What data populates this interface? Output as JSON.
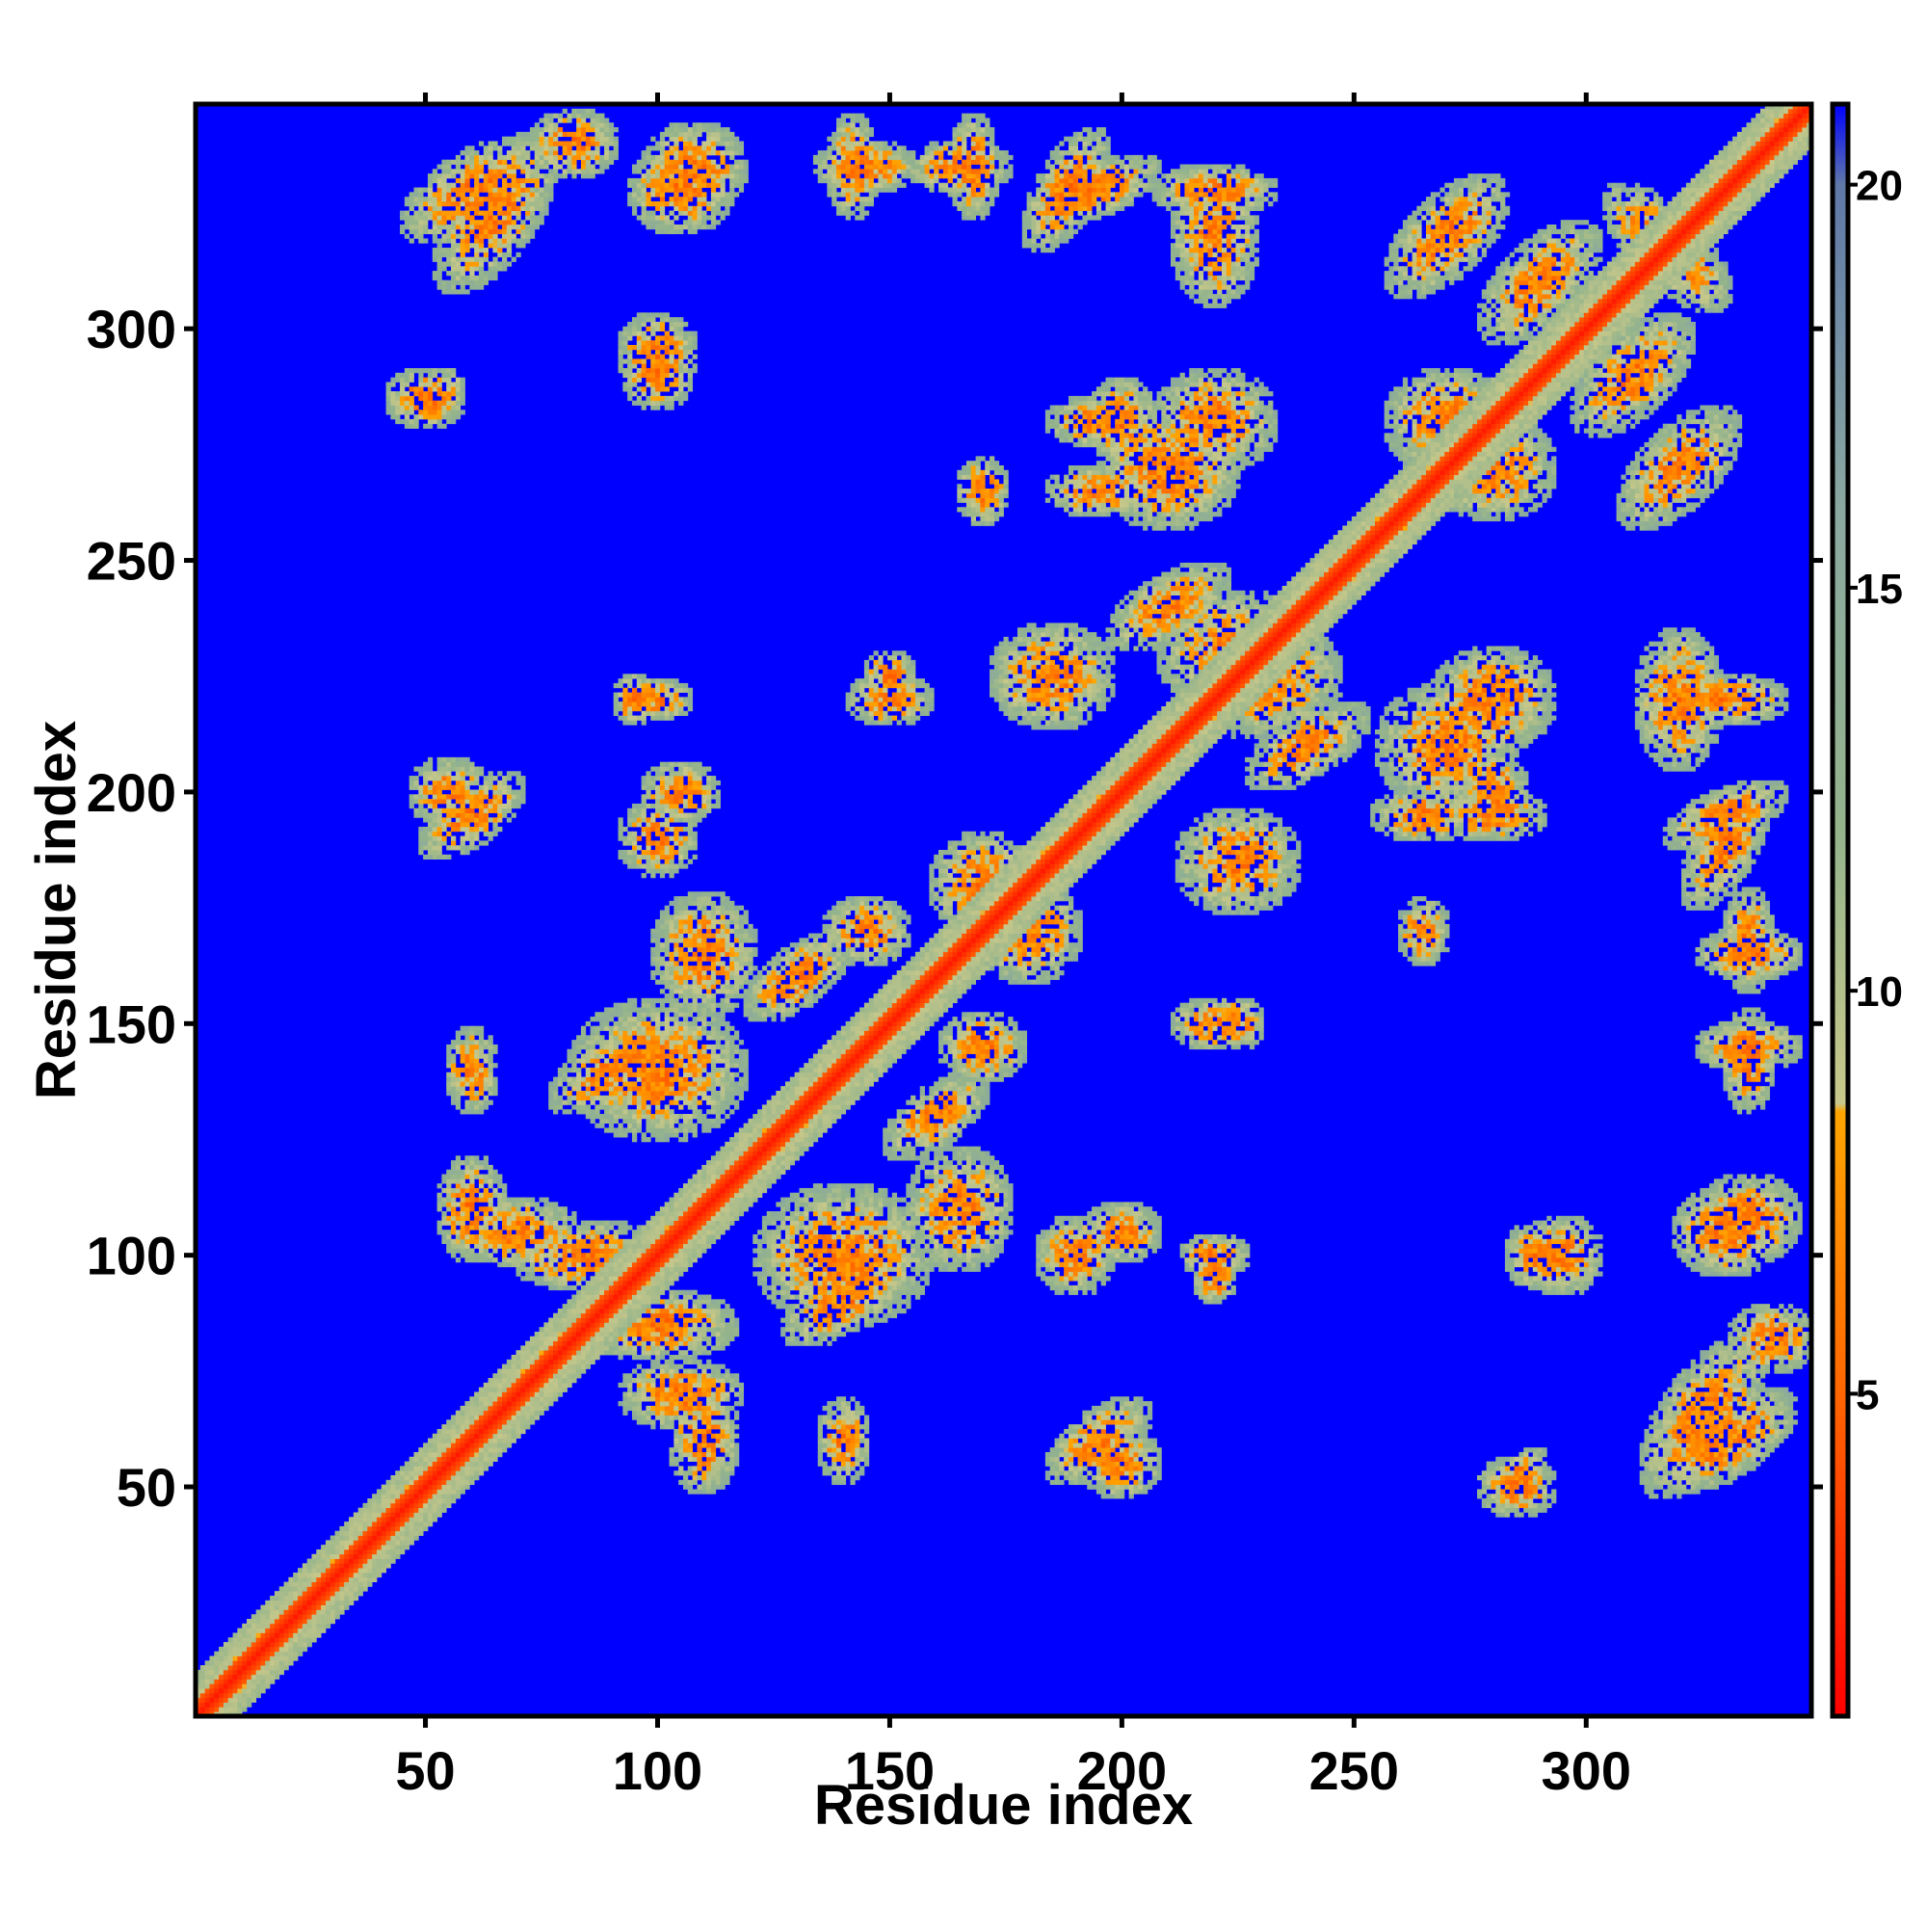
{
  "chart_data": {
    "type": "heatmap",
    "title": "",
    "xlabel": "Residue index",
    "ylabel": "Residue index",
    "x_range": [
      1,
      348
    ],
    "y_range": [
      1,
      348
    ],
    "x_ticks": [
      50,
      100,
      150,
      200,
      250,
      300
    ],
    "y_ticks": [
      50,
      100,
      150,
      200,
      250,
      300
    ],
    "colorbar": {
      "range": [
        1,
        21
      ],
      "ticks": [
        5,
        10,
        15,
        20
      ],
      "stops": [
        {
          "value": 1,
          "color": "#ff0000"
        },
        {
          "value": 5,
          "color": "#ff6600"
        },
        {
          "value": 8.5,
          "color": "#ffa500"
        },
        {
          "value": 8.6,
          "color": "#c8c88a"
        },
        {
          "value": 12,
          "color": "#94b48c"
        },
        {
          "value": 16,
          "color": "#8aa8a0"
        },
        {
          "value": 20,
          "color": "#5f78a8"
        },
        {
          "value": 21,
          "color": "#0000ff"
        }
      ]
    },
    "background_value": 21,
    "diagonal_band": {
      "core_value": 2,
      "half_width": 3,
      "outer_half_width": 9,
      "outer_value": 11
    },
    "contact_regions": [
      {
        "x": 65,
        "y": 325,
        "sx": 14,
        "sy": 18,
        "tilt": 1
      },
      {
        "x": 82,
        "y": 340,
        "sx": 10,
        "sy": 8,
        "tilt": 0
      },
      {
        "x": 108,
        "y": 335,
        "sx": 12,
        "sy": 10,
        "tilt": 0
      },
      {
        "x": 142,
        "y": 335,
        "sx": 6,
        "sy": 12,
        "tilt": 0
      },
      {
        "x": 168,
        "y": 335,
        "sx": 6,
        "sy": 12,
        "tilt": 0
      },
      {
        "x": 188,
        "y": 330,
        "sx": 10,
        "sy": 14,
        "tilt": 1
      },
      {
        "x": 220,
        "y": 320,
        "sx": 10,
        "sy": 16,
        "tilt": 0
      },
      {
        "x": 100,
        "y": 295,
        "sx": 9,
        "sy": 9,
        "tilt": 0
      },
      {
        "x": 52,
        "y": 285,
        "sx": 7,
        "sy": 7,
        "tilt": 1
      },
      {
        "x": 55,
        "y": 200,
        "sx": 9,
        "sy": 8,
        "tilt": 0
      },
      {
        "x": 105,
        "y": 200,
        "sx": 9,
        "sy": 7,
        "tilt": 0
      },
      {
        "x": 100,
        "y": 220,
        "sx": 8,
        "sy": 5,
        "tilt": 0
      },
      {
        "x": 150,
        "y": 220,
        "sx": 10,
        "sy": 6,
        "tilt": 0
      },
      {
        "x": 195,
        "y": 280,
        "sx": 12,
        "sy": 6,
        "tilt": 0
      },
      {
        "x": 195,
        "y": 265,
        "sx": 12,
        "sy": 6,
        "tilt": 0
      },
      {
        "x": 220,
        "y": 280,
        "sx": 14,
        "sy": 12,
        "tilt": 0
      },
      {
        "x": 270,
        "y": 320,
        "sx": 14,
        "sy": 14,
        "tilt": 1
      },
      {
        "x": 280,
        "y": 270,
        "sx": 14,
        "sy": 12,
        "tilt": 0
      },
      {
        "x": 310,
        "y": 290,
        "sx": 14,
        "sy": 14,
        "tilt": 1
      },
      {
        "x": 315,
        "y": 320,
        "sx": 12,
        "sy": 12,
        "tilt": -1
      },
      {
        "x": 230,
        "y": 225,
        "sx": 18,
        "sy": 14,
        "tilt": 0
      },
      {
        "x": 270,
        "y": 210,
        "sx": 16,
        "sy": 14,
        "tilt": 0
      },
      {
        "x": 210,
        "y": 240,
        "sx": 14,
        "sy": 10,
        "tilt": 1
      },
      {
        "x": 225,
        "y": 185,
        "sx": 14,
        "sy": 12,
        "tilt": 0
      },
      {
        "x": 280,
        "y": 200,
        "sx": 8,
        "sy": 10,
        "tilt": 0
      },
      {
        "x": 330,
        "y": 220,
        "sx": 14,
        "sy": 6,
        "tilt": 0
      },
      {
        "x": 330,
        "y": 195,
        "sx": 14,
        "sy": 8,
        "tilt": 1
      },
      {
        "x": 335,
        "y": 165,
        "sx": 12,
        "sy": 6,
        "tilt": 0
      },
      {
        "x": 335,
        "y": 145,
        "sx": 12,
        "sy": 6,
        "tilt": 0
      },
      {
        "x": 330,
        "y": 105,
        "sx": 12,
        "sy": 10,
        "tilt": 0
      },
      {
        "x": 330,
        "y": 60,
        "sx": 16,
        "sy": 12,
        "tilt": 1
      },
      {
        "x": 290,
        "y": 100,
        "sx": 8,
        "sy": 8,
        "tilt": 0
      },
      {
        "x": 285,
        "y": 50,
        "sx": 9,
        "sy": 7,
        "tilt": 0
      },
      {
        "x": 195,
        "y": 60,
        "sx": 12,
        "sy": 10,
        "tilt": 1
      },
      {
        "x": 190,
        "y": 100,
        "sx": 9,
        "sy": 9,
        "tilt": 0
      },
      {
        "x": 100,
        "y": 140,
        "sx": 20,
        "sy": 16,
        "tilt": 0
      },
      {
        "x": 100,
        "y": 85,
        "sx": 18,
        "sy": 8,
        "tilt": 0
      },
      {
        "x": 70,
        "y": 105,
        "sx": 14,
        "sy": 8,
        "tilt": 0
      },
      {
        "x": 140,
        "y": 90,
        "sx": 14,
        "sy": 10,
        "tilt": 1
      },
      {
        "x": 110,
        "y": 60,
        "sx": 8,
        "sy": 12,
        "tilt": 0
      },
      {
        "x": 140,
        "y": 60,
        "sx": 6,
        "sy": 10,
        "tilt": 0
      },
      {
        "x": 165,
        "y": 110,
        "sx": 12,
        "sy": 14,
        "tilt": 0
      },
      {
        "x": 130,
        "y": 160,
        "sx": 12,
        "sy": 10,
        "tilt": 1
      },
      {
        "x": 170,
        "y": 180,
        "sx": 12,
        "sy": 12,
        "tilt": 0
      },
      {
        "x": 170,
        "y": 145,
        "sx": 10,
        "sy": 8,
        "tilt": 0
      },
      {
        "x": 265,
        "y": 170,
        "sx": 6,
        "sy": 8,
        "tilt": 0
      },
      {
        "x": 225,
        "y": 150,
        "sx": 6,
        "sy": 6,
        "tilt": 0
      },
      {
        "x": 220,
        "y": 95,
        "sx": 5,
        "sy": 6,
        "tilt": 0
      }
    ]
  }
}
